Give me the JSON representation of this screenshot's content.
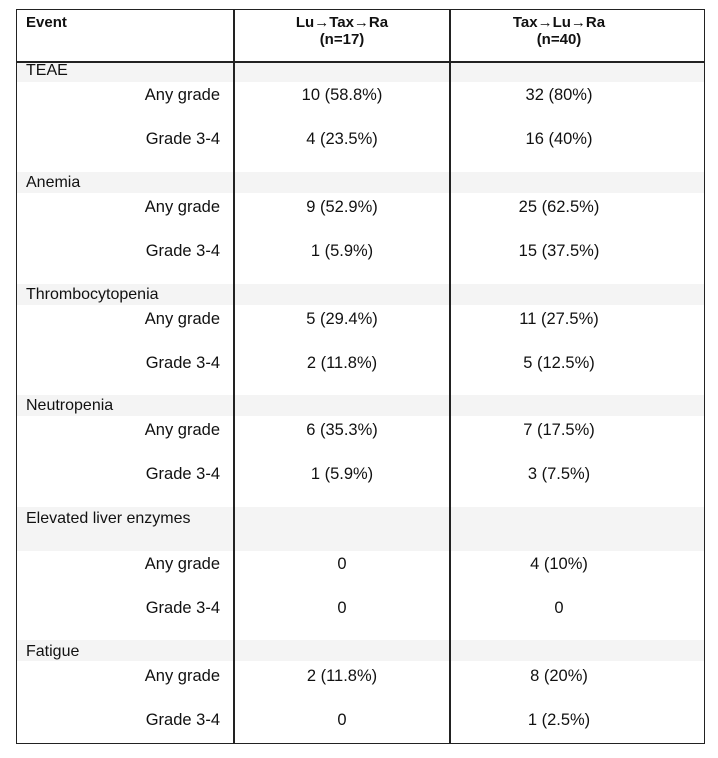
{
  "header": {
    "event": "Event",
    "col1_line1": "Lu→Tax→Ra",
    "col1_line2": "(n=17)",
    "col2_line1": "Tax→Lu→Ra",
    "col2_line2": "(n=40)"
  },
  "groups": [
    {
      "name": "TEAE",
      "rows": [
        {
          "label": "Any grade",
          "a": "10 (58.8%)",
          "b": "32 (80%)"
        },
        {
          "label": "Grade 3-4",
          "a": "4 (23.5%)",
          "b": "16 (40%)"
        }
      ]
    },
    {
      "name": "Anemia",
      "rows": [
        {
          "label": "Any grade",
          "a": "9 (52.9%)",
          "b": "25 (62.5%)"
        },
        {
          "label": "Grade 3-4",
          "a": "1 (5.9%)",
          "b": "15 (37.5%)"
        }
      ]
    },
    {
      "name": "Thrombocytopenia",
      "rows": [
        {
          "label": "Any grade",
          "a": "5 (29.4%)",
          "b": "11 (27.5%)"
        },
        {
          "label": "Grade 3-4",
          "a": "2 (11.8%)",
          "b": "5 (12.5%)"
        }
      ]
    },
    {
      "name": "Neutropenia",
      "rows": [
        {
          "label": "Any grade",
          "a": "6 (35.3%)",
          "b": "7 (17.5%)"
        },
        {
          "label": "Grade 3-4",
          "a": "1 (5.9%)",
          "b": "3 (7.5%)"
        }
      ]
    },
    {
      "name": "Elevated liver enzymes",
      "rows": [
        {
          "label": "Any grade",
          "a": "0",
          "b": "4 (10%)"
        },
        {
          "label": "Grade 3-4",
          "a": "0",
          "b": "0"
        }
      ]
    },
    {
      "name": "Fatigue",
      "rows": [
        {
          "label": "Any grade",
          "a": "2 (11.8%)",
          "b": "8 (20%)"
        },
        {
          "label": "Grade 3-4",
          "a": "0",
          "b": "1 (2.5%)"
        }
      ]
    }
  ]
}
